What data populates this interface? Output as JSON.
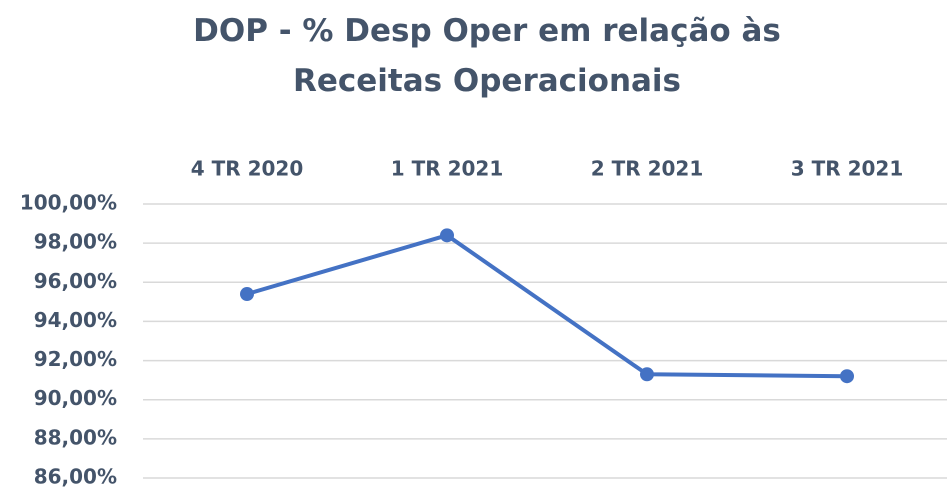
{
  "chart_data": {
    "type": "line",
    "title": "DOP - % Desp Oper em relação às Receitas Operacionais",
    "categories": [
      "4 TR 2020",
      "1 TR 2021",
      "2 TR 2021",
      "3 TR 2021"
    ],
    "series": [
      {
        "name": "DOP",
        "color": "#4472c4",
        "values": [
          95.4,
          98.4,
          91.3,
          91.2
        ]
      }
    ],
    "ylim": [
      86,
      100
    ],
    "yticks": [
      {
        "value": 86,
        "label": "86,00%"
      },
      {
        "value": 88,
        "label": "88,00%"
      },
      {
        "value": 90,
        "label": "90,00%"
      },
      {
        "value": 92,
        "label": "92,00%"
      },
      {
        "value": 94,
        "label": "94,00%"
      },
      {
        "value": 96,
        "label": "96,00%"
      },
      {
        "value": 98,
        "label": "98,00%"
      },
      {
        "value": 100,
        "label": "100,00%"
      }
    ],
    "grid": true
  }
}
